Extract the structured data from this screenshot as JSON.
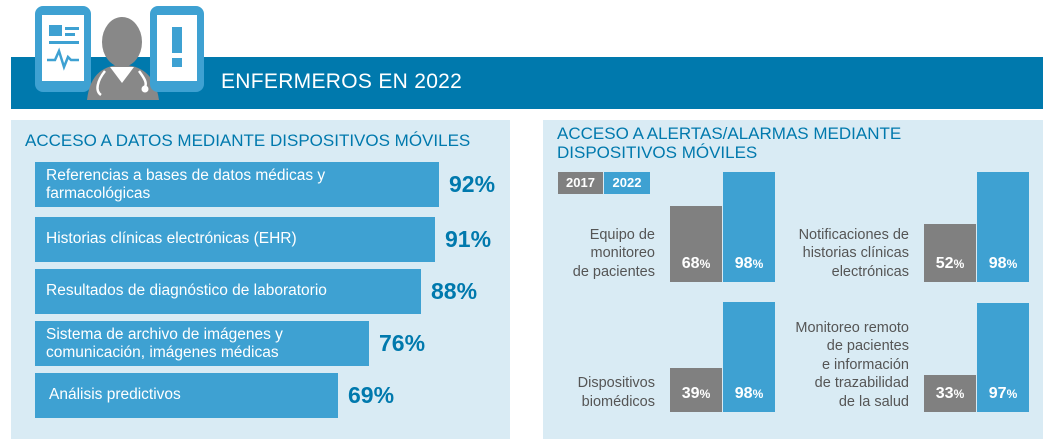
{
  "header": {
    "title": "ENFERMEROS EN 2022"
  },
  "colors": {
    "banner": "#0079ad",
    "panel": "#d9ebf4",
    "bar_2022": "#3ea1d2",
    "bar_2017": "#808080",
    "accent_text": "#0079ad"
  },
  "icons": [
    "clipboard-chart-icon",
    "nurse-avatar-icon",
    "stethoscope-icon",
    "alert-device-icon"
  ],
  "chart_data": [
    {
      "type": "bar",
      "orientation": "horizontal",
      "title": "ACCESO A DATOS MEDIANTE DISPOSITIVOS MÓVILES",
      "categories": [
        [
          "Referencias a bases de datos médicas y",
          "farmacológicas"
        ],
        [
          "Historias clínicas electrónicas (EHR)"
        ],
        [
          "Resultados de diagnóstico de laboratorio"
        ],
        [
          "Sistema de archivo de imágenes y",
          "comunicación, imágenes médicas"
        ],
        [
          "Análisis predictivos"
        ]
      ],
      "values": [
        92,
        91,
        88,
        76,
        69
      ],
      "value_labels": [
        "92%",
        "91%",
        "88%",
        "76%",
        "69%"
      ],
      "unit": "%"
    },
    {
      "type": "bar",
      "orientation": "vertical",
      "title": [
        "ACCESO A ALERTAS/ALARMAS MEDIANTE",
        "DISPOSITIVOS MÓVILES"
      ],
      "legend": [
        "2017",
        "2022"
      ],
      "groups": [
        {
          "label": [
            "Equipo de",
            "monitoreo",
            "de pacientes"
          ],
          "values": [
            68,
            98
          ]
        },
        {
          "label": [
            "Notificaciones de",
            "historias clínicas",
            "electrónicas"
          ],
          "values": [
            52,
            98
          ]
        },
        {
          "label": [
            "Dispositivos",
            "biomédicos"
          ],
          "values": [
            39,
            98
          ]
        },
        {
          "label": [
            "Monitoreo remoto",
            "de pacientes",
            "e información",
            "de trazabilidad",
            "de la salud"
          ],
          "values": [
            33,
            97
          ]
        }
      ],
      "unit": "%"
    }
  ]
}
